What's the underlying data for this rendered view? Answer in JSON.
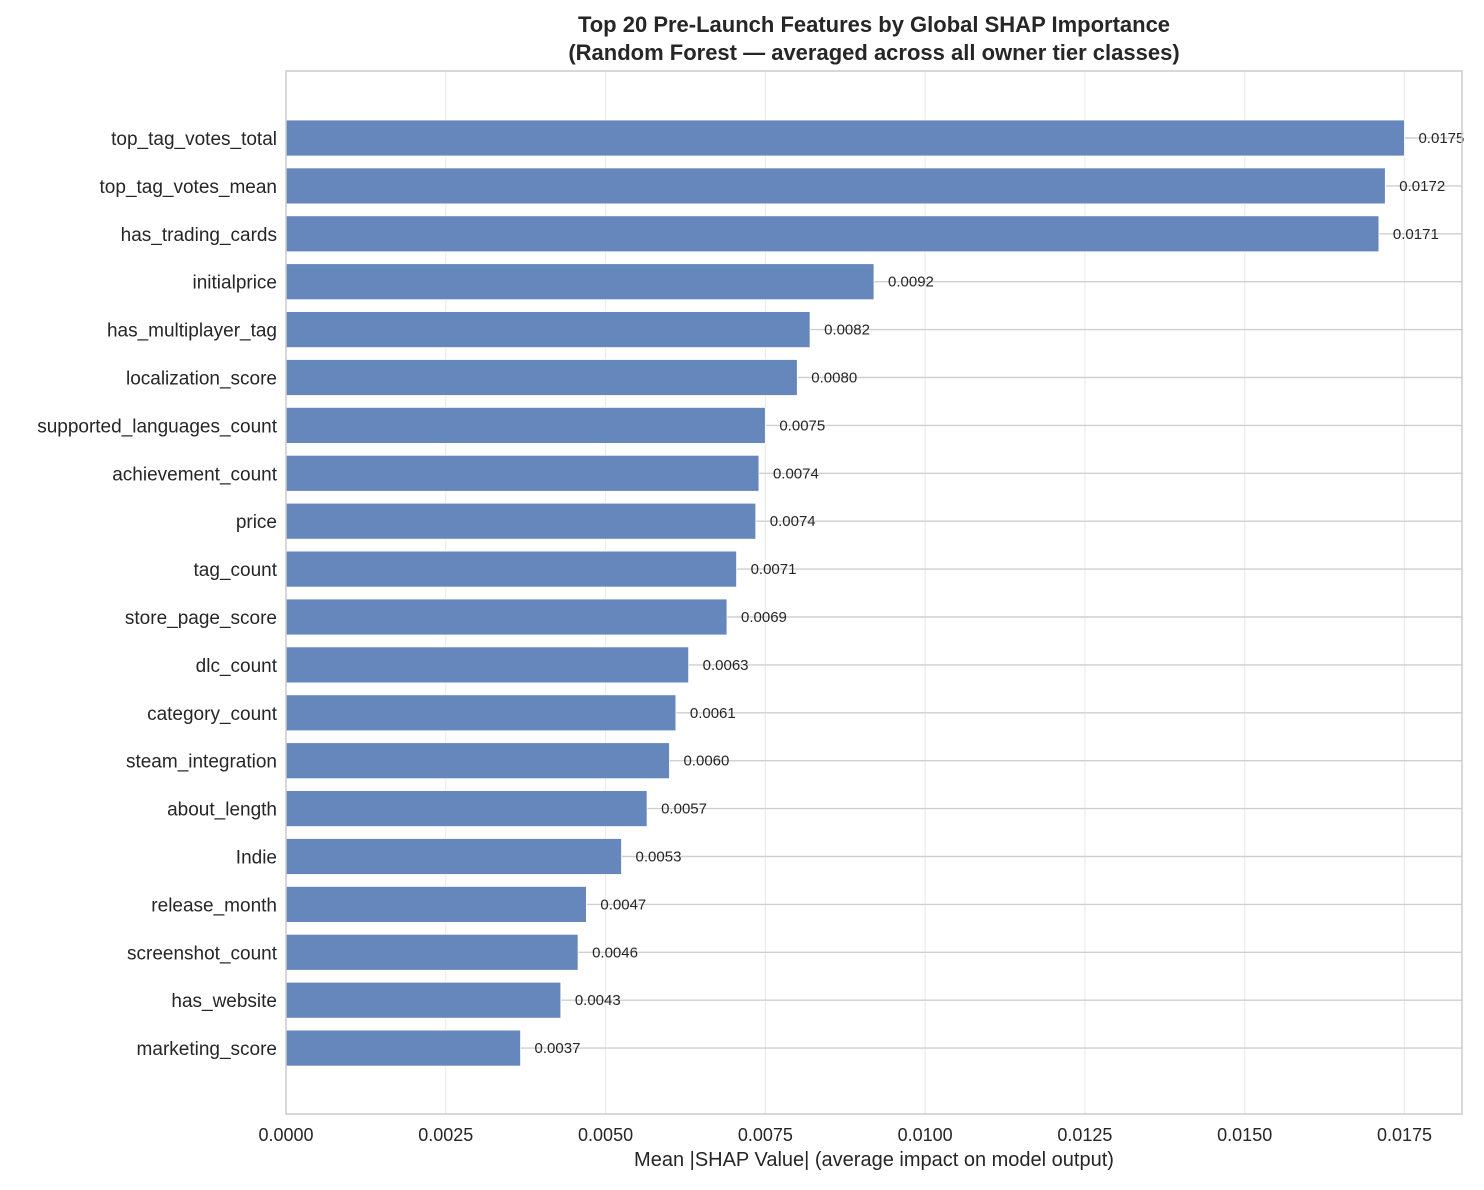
{
  "chart_data": {
    "type": "bar",
    "orientation": "horizontal",
    "title_line1": "Top 20 Pre-Launch Features by Global SHAP Importance",
    "title_line2": "(Random Forest — averaged across all owner tier classes)",
    "xlabel": "Mean |SHAP Value| (average impact on model output)",
    "ylabel": "",
    "xlim": [
      0,
      0.0184
    ],
    "xticks": [
      0,
      0.0025,
      0.005,
      0.0075,
      0.01,
      0.0125,
      0.015,
      0.0175
    ],
    "xtick_labels": [
      "0.0000",
      "0.0025",
      "0.0050",
      "0.0075",
      "0.0100",
      "0.0125",
      "0.0150",
      "0.0175"
    ],
    "grid": true,
    "bar_color": "#6687bb",
    "categories": [
      "top_tag_votes_total",
      "top_tag_votes_mean",
      "has_trading_cards",
      "initialprice",
      "has_multiplayer_tag",
      "localization_score",
      "supported_languages_count",
      "achievement_count",
      "price",
      "tag_count",
      "store_page_score",
      "dlc_count",
      "category_count",
      "steam_integration",
      "about_length",
      "Indie",
      "release_month",
      "screenshot_count",
      "has_website",
      "marketing_score"
    ],
    "values": [
      0.0175,
      0.0172,
      0.0171,
      0.0092,
      0.0082,
      0.008,
      0.0075,
      0.0074,
      0.00735,
      0.00705,
      0.0069,
      0.0063,
      0.0061,
      0.006,
      0.00565,
      0.00525,
      0.0047,
      0.00457,
      0.0043,
      0.00367
    ],
    "value_labels": [
      "0.0175",
      "0.0172",
      "0.0171",
      "0.0092",
      "0.0082",
      "0.0080",
      "0.0075",
      "0.0074",
      "0.0074",
      "0.0071",
      "0.0069",
      "0.0063",
      "0.0061",
      "0.0060",
      "0.0057",
      "0.0053",
      "0.0047",
      "0.0046",
      "0.0043",
      "0.0037"
    ]
  }
}
